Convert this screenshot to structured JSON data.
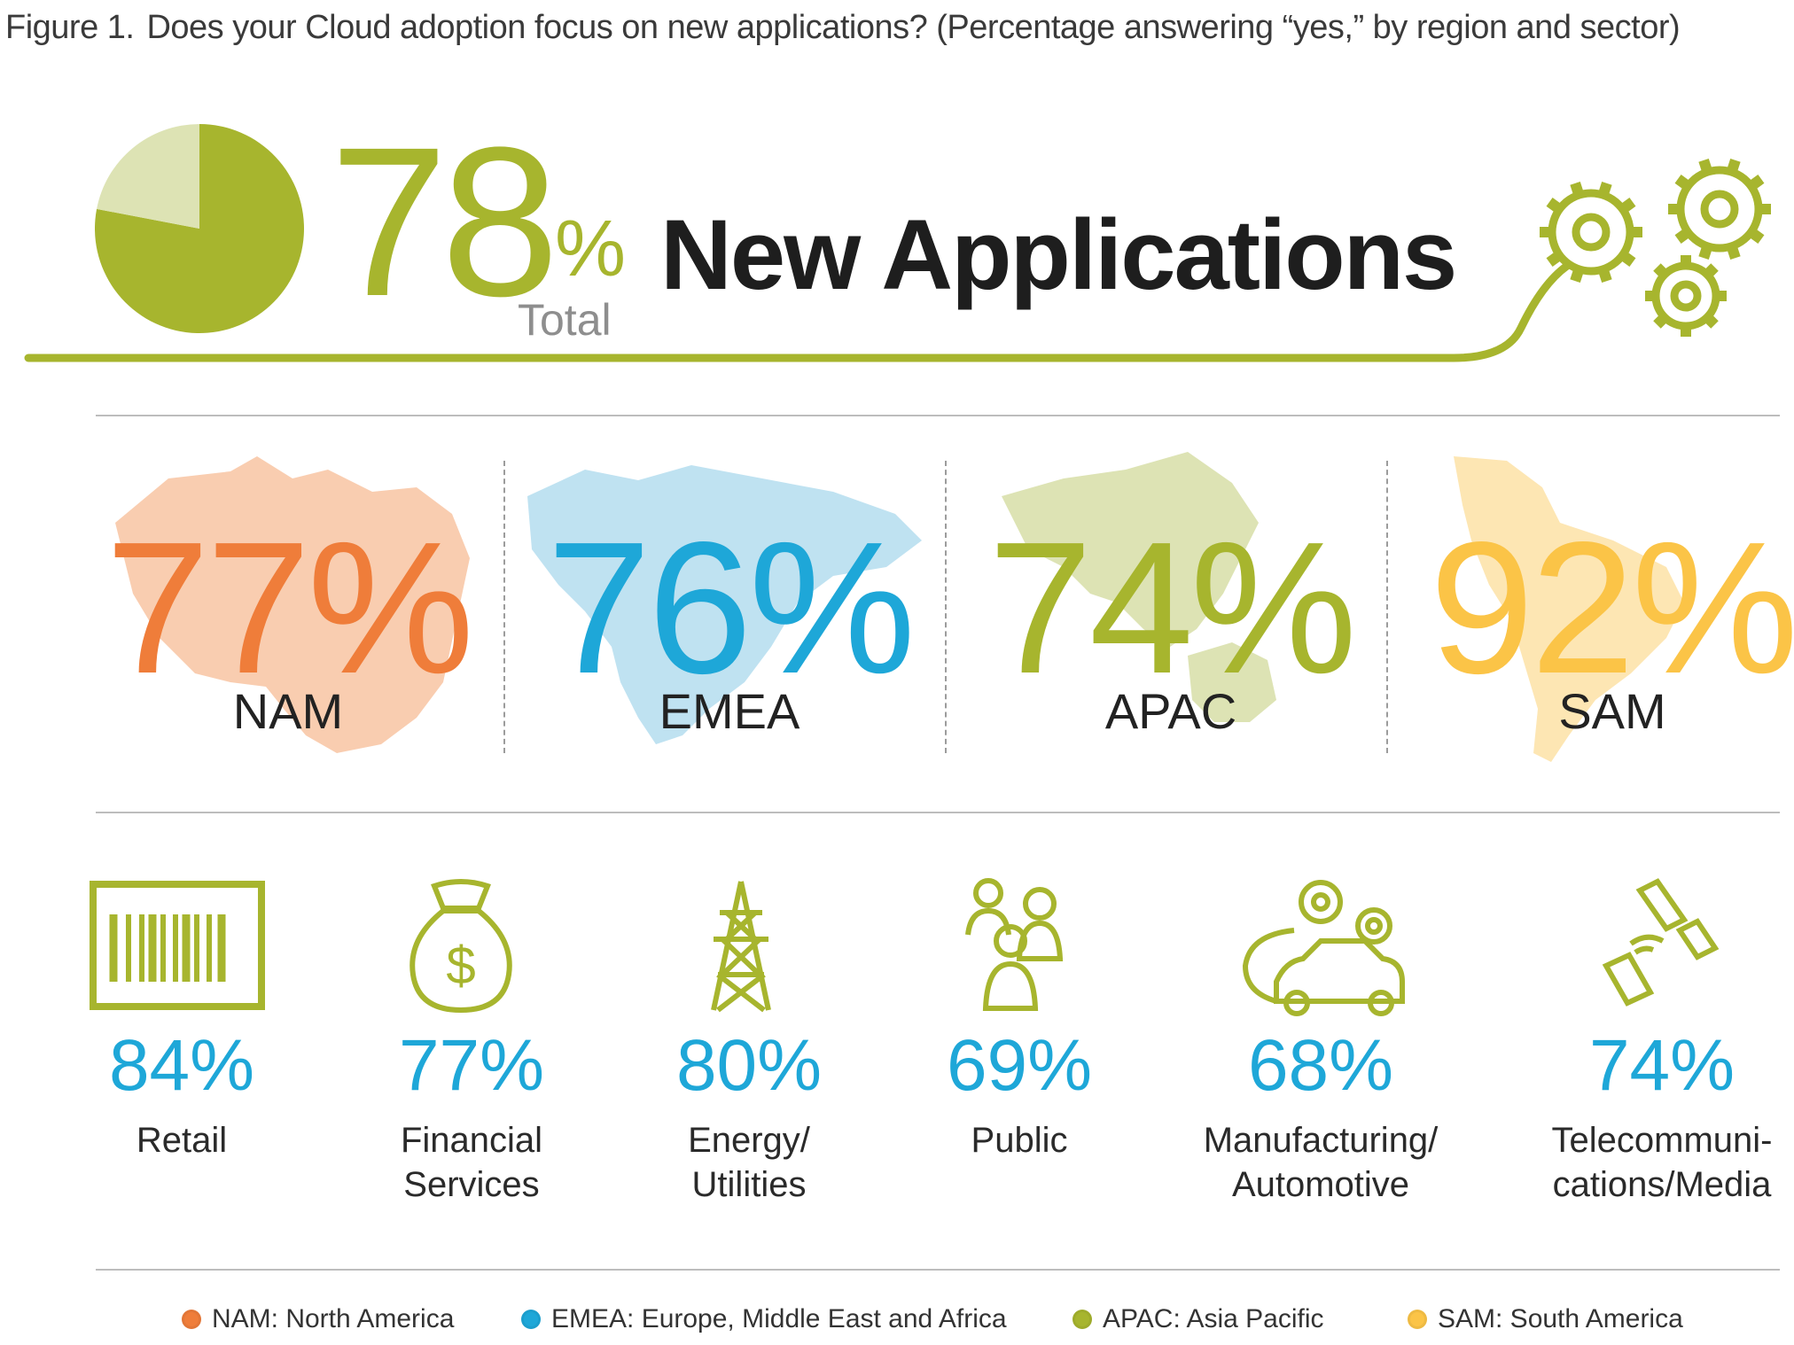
{
  "figure": {
    "label": "Figure 1.",
    "title": "Does your Cloud adoption focus on new applications? (Percentage answering “yes,” by region and sector)"
  },
  "headline": {
    "total_value": "78",
    "percent_sign": "%",
    "total_label": "Total",
    "title": "New Applications"
  },
  "regions": [
    {
      "value_label": "77%",
      "name": "NAM"
    },
    {
      "value_label": "76%",
      "name": "EMEA"
    },
    {
      "value_label": "74%",
      "name": "APAC"
    },
    {
      "value_label": "92%",
      "name": "SAM"
    }
  ],
  "sectors": [
    {
      "value_label": "84%",
      "name": "Retail",
      "icon": "barcode-icon"
    },
    {
      "value_label": "77%",
      "name": "Financial\nServices",
      "icon": "money-bag-icon"
    },
    {
      "value_label": "80%",
      "name": "Energy/\nUtilities",
      "icon": "power-tower-icon"
    },
    {
      "value_label": "69%",
      "name": "Public",
      "icon": "people-icon"
    },
    {
      "value_label": "68%",
      "name": "Manufacturing/\nAutomotive",
      "icon": "car-gears-icon"
    },
    {
      "value_label": "74%",
      "name": "Telecommuni-\ncations/Media",
      "icon": "satellite-phone-icon"
    }
  ],
  "legend": [
    {
      "text": "NAM: North America",
      "color": "#ef7d3a"
    },
    {
      "text": "EMEA: Europe, Middle East and Africa",
      "color": "#1ea7d8"
    },
    {
      "text": "APAC: Asia Pacific",
      "color": "#a7b52e"
    },
    {
      "text": "SAM: South America",
      "color": "#fbc447"
    }
  ],
  "colors": {
    "accent": "#a7b52e",
    "nam": "#ef7d3a",
    "emea": "#1ea7d8",
    "apac": "#a7b52e",
    "sam": "#fbc447",
    "map_nam": "#f9cdb0",
    "map_emea": "#bfe2f1",
    "map_apac": "#dde3b4",
    "map_sam": "#fde6b3"
  },
  "chart_data": [
    {
      "type": "pie",
      "title": "New Applications",
      "categories": [
        "yes",
        "other"
      ],
      "values": [
        78,
        22
      ]
    },
    {
      "type": "bar",
      "title": "",
      "categories": [
        "NAM",
        "EMEA",
        "APAC",
        "SAM"
      ],
      "values": [
        77,
        76,
        74,
        92
      ]
    },
    {
      "type": "bar",
      "title": "",
      "categories": [
        "Retail",
        "Financial Services",
        "Energy/Utilities",
        "Public",
        "Manufacturing/Automotive",
        "Telecommunications/Media"
      ],
      "values": [
        84,
        77,
        80,
        69,
        68,
        74
      ]
    }
  ]
}
